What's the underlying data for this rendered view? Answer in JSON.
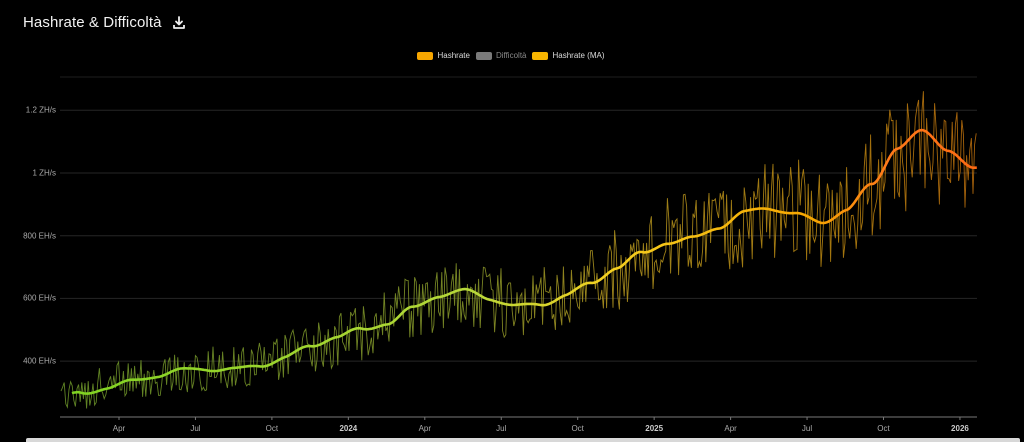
{
  "header": {
    "title": "Hashrate & Difficoltà",
    "download_icon": "download-icon"
  },
  "legend": [
    {
      "label": "Hashrate",
      "color": "#f7a600",
      "active": true
    },
    {
      "label": "Difficoltà",
      "color": "#7a7a7a",
      "active": false
    },
    {
      "label": "Hashrate (MA)",
      "color": "#f7b500",
      "active": true
    }
  ],
  "colors": {
    "background": "#000000",
    "grid": "#2a2a2a",
    "axis": "#666666",
    "gradient_start": "#7ed321",
    "gradient_mid": "#f5c518",
    "gradient_end": "#ff6a13"
  },
  "chart_data": {
    "type": "line",
    "title": "Hashrate & Difficoltà",
    "xlabel": "",
    "ylabel": "",
    "y_unit": "EH/s",
    "ylim": [
      222,
      1320
    ],
    "grid": true,
    "legend_position": "top-center",
    "y_ticks": [
      {
        "value": 400,
        "label": "400 EH/s"
      },
      {
        "value": 600,
        "label": "600 EH/s"
      },
      {
        "value": 800,
        "label": "800 EH/s"
      },
      {
        "value": 1000,
        "label": "1 ZH/s"
      },
      {
        "value": 1200,
        "label": "1.2 ZH/s"
      }
    ],
    "x_ticks": [
      {
        "label": "Apr",
        "year": false
      },
      {
        "label": "Jul",
        "year": false
      },
      {
        "label": "Oct",
        "year": false
      },
      {
        "label": "2024",
        "year": true
      },
      {
        "label": "Apr",
        "year": false
      },
      {
        "label": "Jul",
        "year": false
      },
      {
        "label": "Oct",
        "year": false
      },
      {
        "label": "2025",
        "year": true
      },
      {
        "label": "Apr",
        "year": false
      },
      {
        "label": "Jul",
        "year": false
      },
      {
        "label": "Oct",
        "year": false
      },
      {
        "label": "2026",
        "year": true
      }
    ],
    "x_range": [
      "2023-01-20",
      "2026-01-20"
    ],
    "series": [
      {
        "name": "Hashrate (MA)",
        "description": "smoothed moving average, EH/s (estimated monthly)",
        "x": [
          "2023-01",
          "2023-02",
          "2023-03",
          "2023-04",
          "2023-05",
          "2023-06",
          "2023-07",
          "2023-08",
          "2023-09",
          "2023-10",
          "2023-11",
          "2023-12",
          "2024-01",
          "2024-02",
          "2024-03",
          "2024-04",
          "2024-05",
          "2024-06",
          "2024-07",
          "2024-08",
          "2024-09",
          "2024-10",
          "2024-11",
          "2024-12",
          "2025-01",
          "2025-02",
          "2025-03",
          "2025-04",
          "2025-05",
          "2025-06",
          "2025-07",
          "2025-08",
          "2025-09",
          "2025-10",
          "2025-11",
          "2025-12",
          "2026-01"
        ],
        "values": [
          272,
          300,
          325,
          340,
          350,
          362,
          372,
          380,
          395,
          413,
          440,
          470,
          500,
          530,
          575,
          608,
          615,
          595,
          579,
          590,
          615,
          643,
          690,
          740,
          786,
          800,
          830,
          866,
          880,
          870,
          850,
          890,
          960,
          1073,
          1125,
          1080,
          1020
        ]
      },
      {
        "name": "Hashrate",
        "description": "raw daily hashrate, noisy around MA with ±~10-15% spikes",
        "values_note": "follows MA with high-frequency spikes; max ≈1310 EH/s near Nov 2025, min ≈230 EH/s near Feb 2023"
      },
      {
        "name": "Difficoltà",
        "description": "hidden (legend toggled off)",
        "values": []
      }
    ]
  }
}
